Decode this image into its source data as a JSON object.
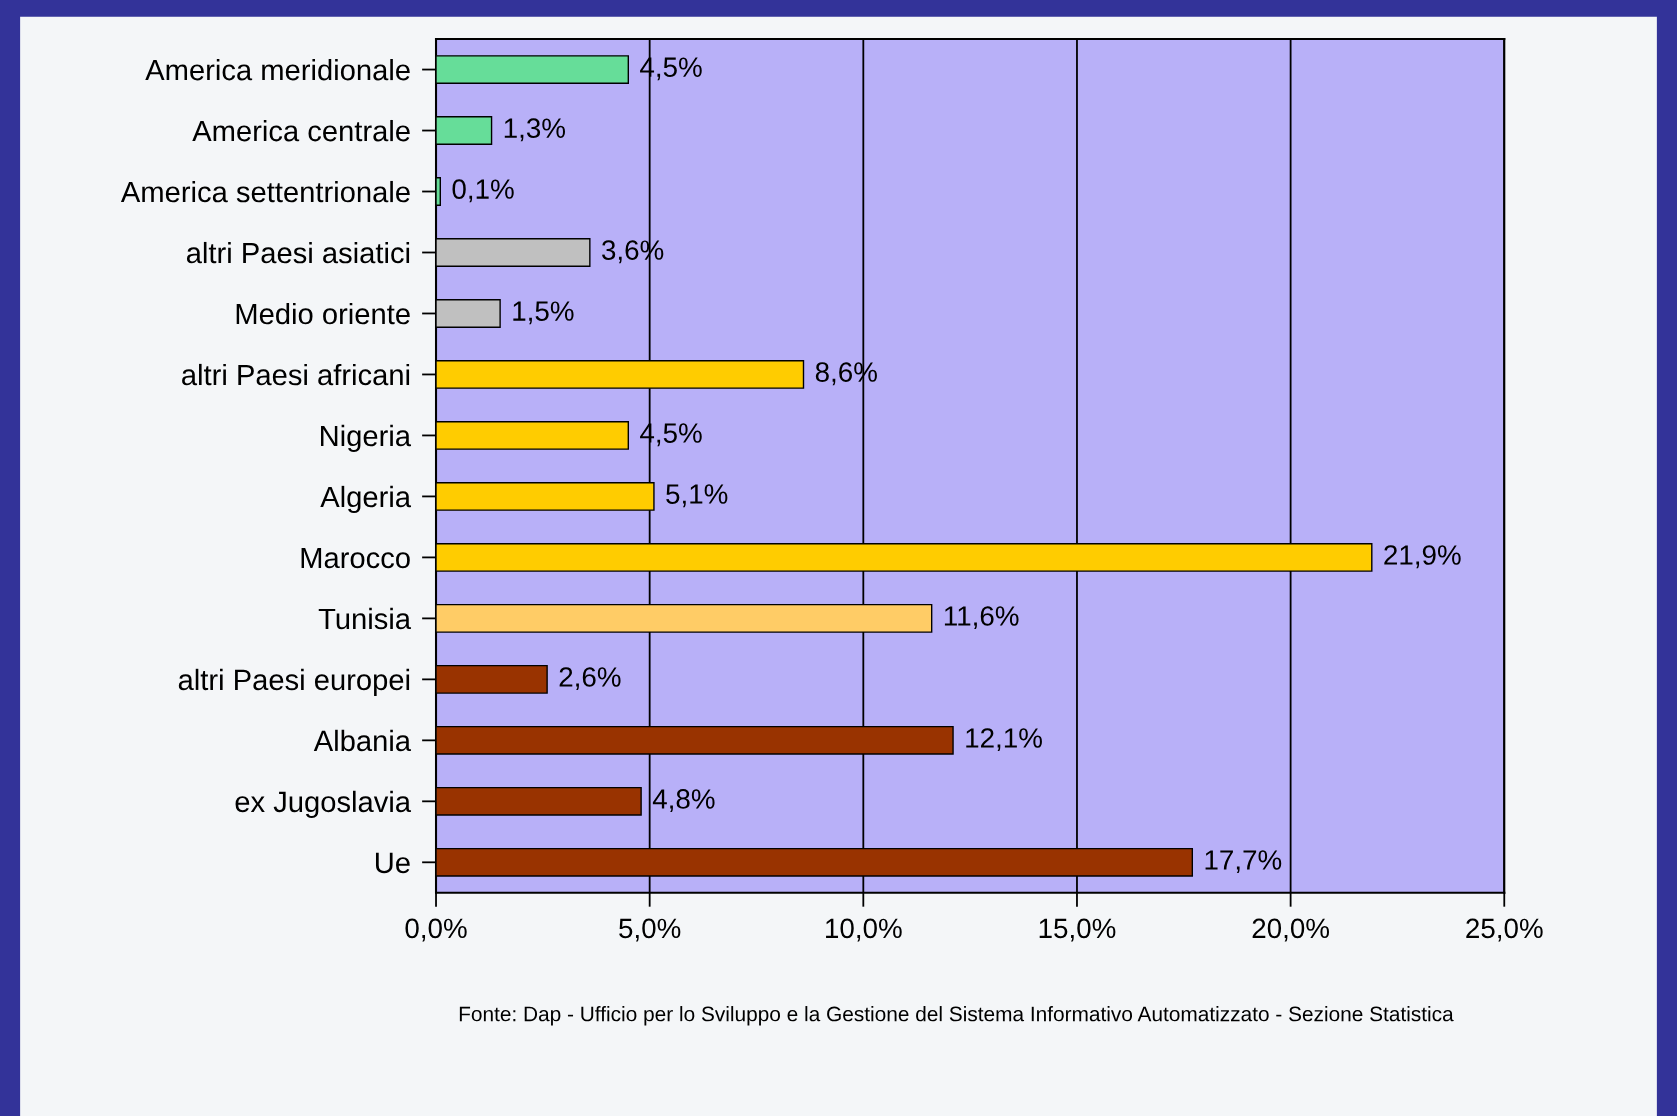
{
  "chart_data": {
    "type": "bar",
    "orientation": "horizontal",
    "categories": [
      "America meridionale",
      "America centrale",
      "America settentrionale",
      "altri Paesi asiatici",
      "Medio oriente",
      "altri Paesi africani",
      "Nigeria",
      "Algeria",
      "Marocco",
      "Tunisia",
      "altri Paesi europei",
      "Albania",
      "ex Jugoslavia",
      "Ue"
    ],
    "values": [
      4.5,
      1.3,
      0.1,
      3.6,
      1.5,
      8.6,
      4.5,
      5.1,
      21.9,
      11.6,
      2.6,
      12.1,
      4.8,
      17.7
    ],
    "value_labels": [
      "4,5%",
      "1,3%",
      "0,1%",
      "3,6%",
      "1,5%",
      "8,6%",
      "4,5%",
      "5,1%",
      "21,9%",
      "11,6%",
      "2,6%",
      "12,1%",
      "4,8%",
      "17,7%"
    ],
    "colors": [
      "#66dd99",
      "#66dd99",
      "#66dd99",
      "#c0c0c0",
      "#c0c0c0",
      "#ffcc00",
      "#ffcc00",
      "#ffcc00",
      "#ffcc00",
      "#ffcc66",
      "#993300",
      "#993300",
      "#993300",
      "#993300"
    ],
    "xlim": [
      0,
      25
    ],
    "xticks": [
      {
        "value": 0,
        "label": "0,0%"
      },
      {
        "value": 5,
        "label": "5,0%"
      },
      {
        "value": 10,
        "label": "10,0%"
      },
      {
        "value": 15,
        "label": "15,0%"
      },
      {
        "value": 20,
        "label": "20,0%"
      },
      {
        "value": 25,
        "label": "25,0%"
      }
    ],
    "grid": "x",
    "annotations": [
      "Fonte: Dap - Ufficio per lo Sviluppo e la Gestione del Sistema Informativo Automatizzato - Sezione Statistica"
    ]
  }
}
